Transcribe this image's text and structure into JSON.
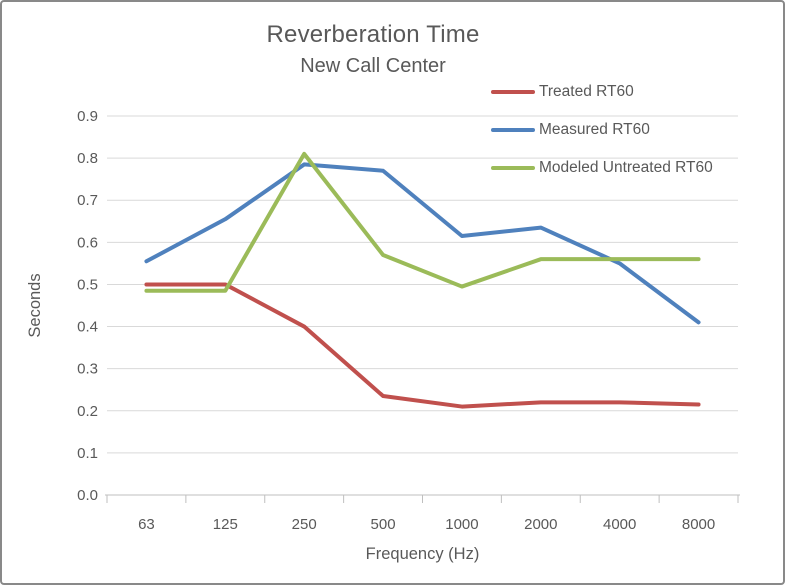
{
  "window": {
    "background_color": "#FFFFFF",
    "border_color": "#898989"
  },
  "chart_data": {
    "type": "line",
    "title": "Reverberation Time",
    "subtitle": "New Call Center",
    "xlabel": "Frequency (Hz)",
    "ylabel": "Seconds",
    "categories": [
      "63",
      "125",
      "250",
      "500",
      "1000",
      "2000",
      "4000",
      "8000"
    ],
    "series": [
      {
        "name": "Treated RT60",
        "color": "#C0504D",
        "values": [
          0.5,
          0.5,
          0.4,
          0.235,
          0.21,
          0.22,
          0.22,
          0.215
        ]
      },
      {
        "name": "Measured RT60",
        "color": "#4F81BD",
        "values": [
          0.555,
          0.655,
          0.785,
          0.77,
          0.615,
          0.635,
          0.55,
          0.41
        ]
      },
      {
        "name": "Modeled Untreated RT60",
        "color": "#9BBB59",
        "values": [
          0.485,
          0.485,
          0.81,
          0.57,
          0.495,
          0.56,
          0.56,
          0.56
        ]
      }
    ],
    "y_ticks": [
      "0.0",
      "0.1",
      "0.2",
      "0.3",
      "0.4",
      "0.5",
      "0.6",
      "0.7",
      "0.8",
      "0.9"
    ],
    "ylim": [
      0,
      0.9
    ],
    "grid": "horizontal",
    "legend_position": "top-right",
    "style": {
      "gridline_color": "#D9D9D9",
      "axis_color": "#BFBFBF",
      "text_color": "#595959",
      "line_width": 4,
      "tick_label_size": 15,
      "axis_title_size": 16.5
    }
  }
}
